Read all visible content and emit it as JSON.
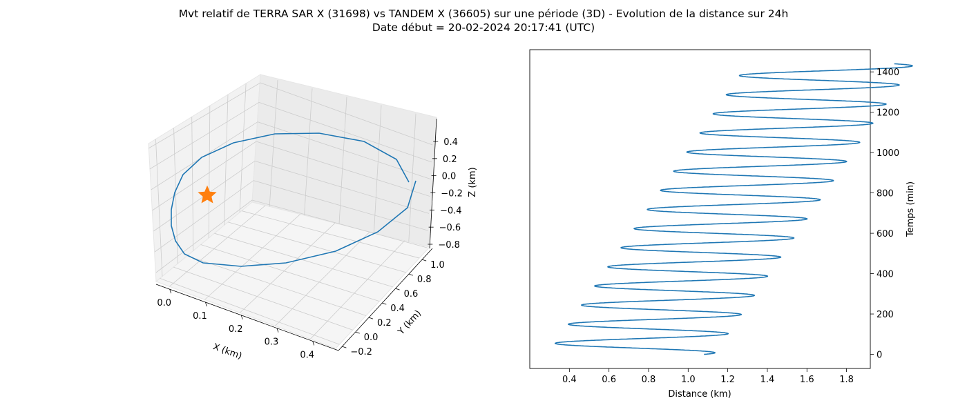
{
  "title_line1": "Mvt relatif de TERRA SAR X (31698) vs TANDEM X (36605) sur une période (3D) - Evolution de la distance sur 24h",
  "title_line2": "Date début = 20-02-2024 20:17:41 (UTC)",
  "colors": {
    "series": "#1f77b4",
    "marker": "#ff7f0e",
    "pane": "#f2f2f2",
    "grid": "#cccccc"
  },
  "chart_data": [
    {
      "type": "line3d",
      "xlabel": "X (km)",
      "ylabel": "Y (km)",
      "zlabel": "Z (km)",
      "xticks": [
        "0.0",
        "0.1",
        "0.2",
        "0.3",
        "0.4"
      ],
      "yticks": [
        "−0.2",
        "0.0",
        "0.2",
        "0.4",
        "0.6",
        "0.8",
        "1.0"
      ],
      "zticks": [
        "−0.8",
        "−0.6",
        "−0.4",
        "−0.2",
        "0.0",
        "0.2",
        "0.4"
      ],
      "grid": true,
      "series": [
        {
          "marker_star": true
        }
      ]
    },
    {
      "type": "line",
      "xlabel": "Distance (km)",
      "ylabel": "Temps (min)",
      "ylabel_position": "right",
      "xlim": [
        0.2,
        1.92
      ],
      "ylim": [
        -70,
        1510
      ],
      "xticks": [
        "0.4",
        "0.6",
        "0.8",
        "1.0",
        "1.2",
        "1.4",
        "1.6",
        "1.8"
      ],
      "xtick_values": [
        0.4,
        0.6,
        0.8,
        1.0,
        1.2,
        1.4,
        1.6,
        1.8
      ],
      "yticks": [
        "0",
        "200",
        "400",
        "600",
        "800",
        "1000",
        "1200",
        "1400"
      ],
      "ytick_values": [
        0,
        200,
        400,
        600,
        800,
        1000,
        1200,
        1400
      ],
      "series": [
        {
          "time_start": 0,
          "time_end": 1440,
          "period_min": 94.8,
          "center_start": 0.71,
          "center_end": 1.72,
          "amplitude": 0.42,
          "start_distance": 1.08,
          "end_distance": 1.61
        }
      ]
    }
  ]
}
